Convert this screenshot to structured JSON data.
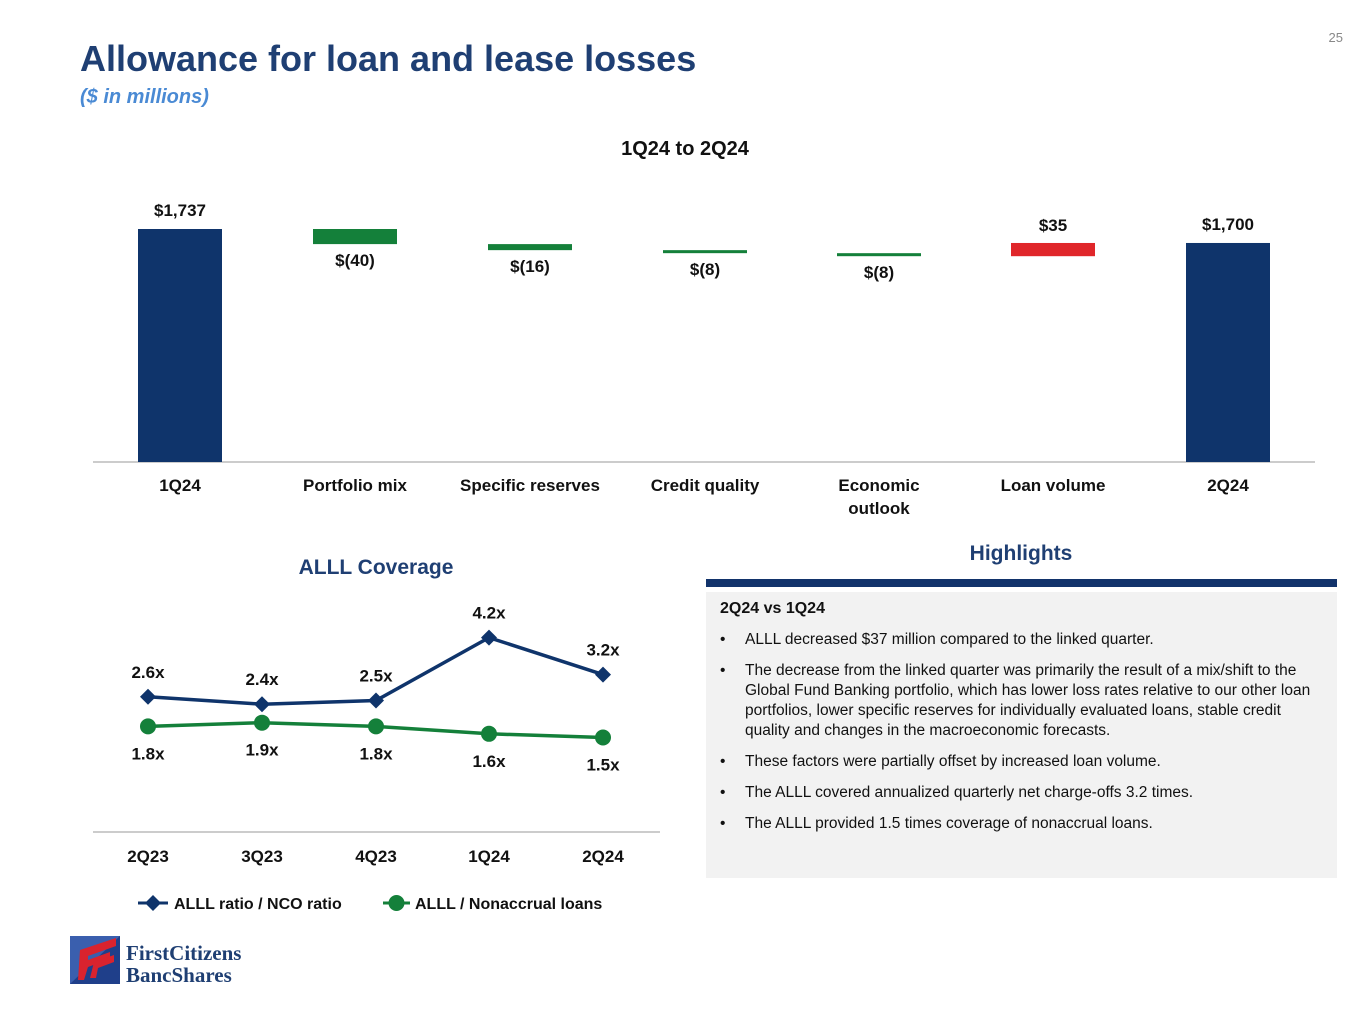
{
  "page_number": "25",
  "title": "Allowance for loan and lease losses",
  "subtitle": "($ in millions)",
  "colors": {
    "navy": "#0f346b",
    "green": "#14803a",
    "red": "#e0262a",
    "title": "#1f3f73"
  },
  "chart_data": [
    {
      "type": "bar",
      "subtype": "waterfall",
      "title": "1Q24 to 2Q24",
      "categories": [
        "1Q24",
        "Portfolio mix",
        "Specific reserves",
        "Credit quality",
        "Economic outlook",
        "Loan volume",
        "2Q24"
      ],
      "values": [
        1737,
        -40,
        -16,
        -8,
        -8,
        35,
        1700
      ],
      "kinds": [
        "total",
        "delta",
        "delta",
        "delta",
        "delta",
        "delta",
        "total"
      ],
      "data_labels": [
        "$1,737",
        "$(40)",
        "$(16)",
        "$(8)",
        "$(8)",
        "$35",
        "$1,700"
      ],
      "ylim": [
        1120,
        1760
      ]
    },
    {
      "type": "line",
      "title": "ALLL Coverage",
      "categories": [
        "2Q23",
        "3Q23",
        "4Q23",
        "1Q24",
        "2Q24"
      ],
      "series": [
        {
          "name": "ALLL ratio / NCO ratio",
          "values": [
            2.6,
            2.4,
            2.5,
            4.2,
            3.2
          ],
          "labels": [
            "2.6x",
            "2.4x",
            "2.5x",
            "4.2x",
            "3.2x"
          ],
          "marker": "diamond",
          "color": "#0f346b"
        },
        {
          "name": "ALLL / Nonaccrual loans",
          "values": [
            1.8,
            1.9,
            1.8,
            1.6,
            1.5
          ],
          "labels": [
            "1.8x",
            "1.9x",
            "1.8x",
            "1.6x",
            "1.5x"
          ],
          "marker": "circle",
          "color": "#14803a"
        }
      ],
      "legend": "bottom"
    }
  ],
  "highlights": {
    "title": "Highlights",
    "heading": "2Q24 vs 1Q24",
    "bullets": [
      "ALLL decreased $37 million compared to the linked quarter.",
      "The decrease from the linked quarter was primarily the result of a mix/shift to the Global Fund Banking portfolio, which has lower loss rates relative to our other loan portfolios, lower specific reserves for individually evaluated loans, stable credit quality and changes in the macroeconomic forecasts.",
      "These factors were partially offset by increased loan volume.",
      "The ALLL covered annualized quarterly net charge-offs 3.2 times.",
      "The ALLL provided 1.5 times coverage of nonaccrual loans."
    ]
  },
  "logo": {
    "line1": "FirstCitizens",
    "line2": "BancShares"
  }
}
